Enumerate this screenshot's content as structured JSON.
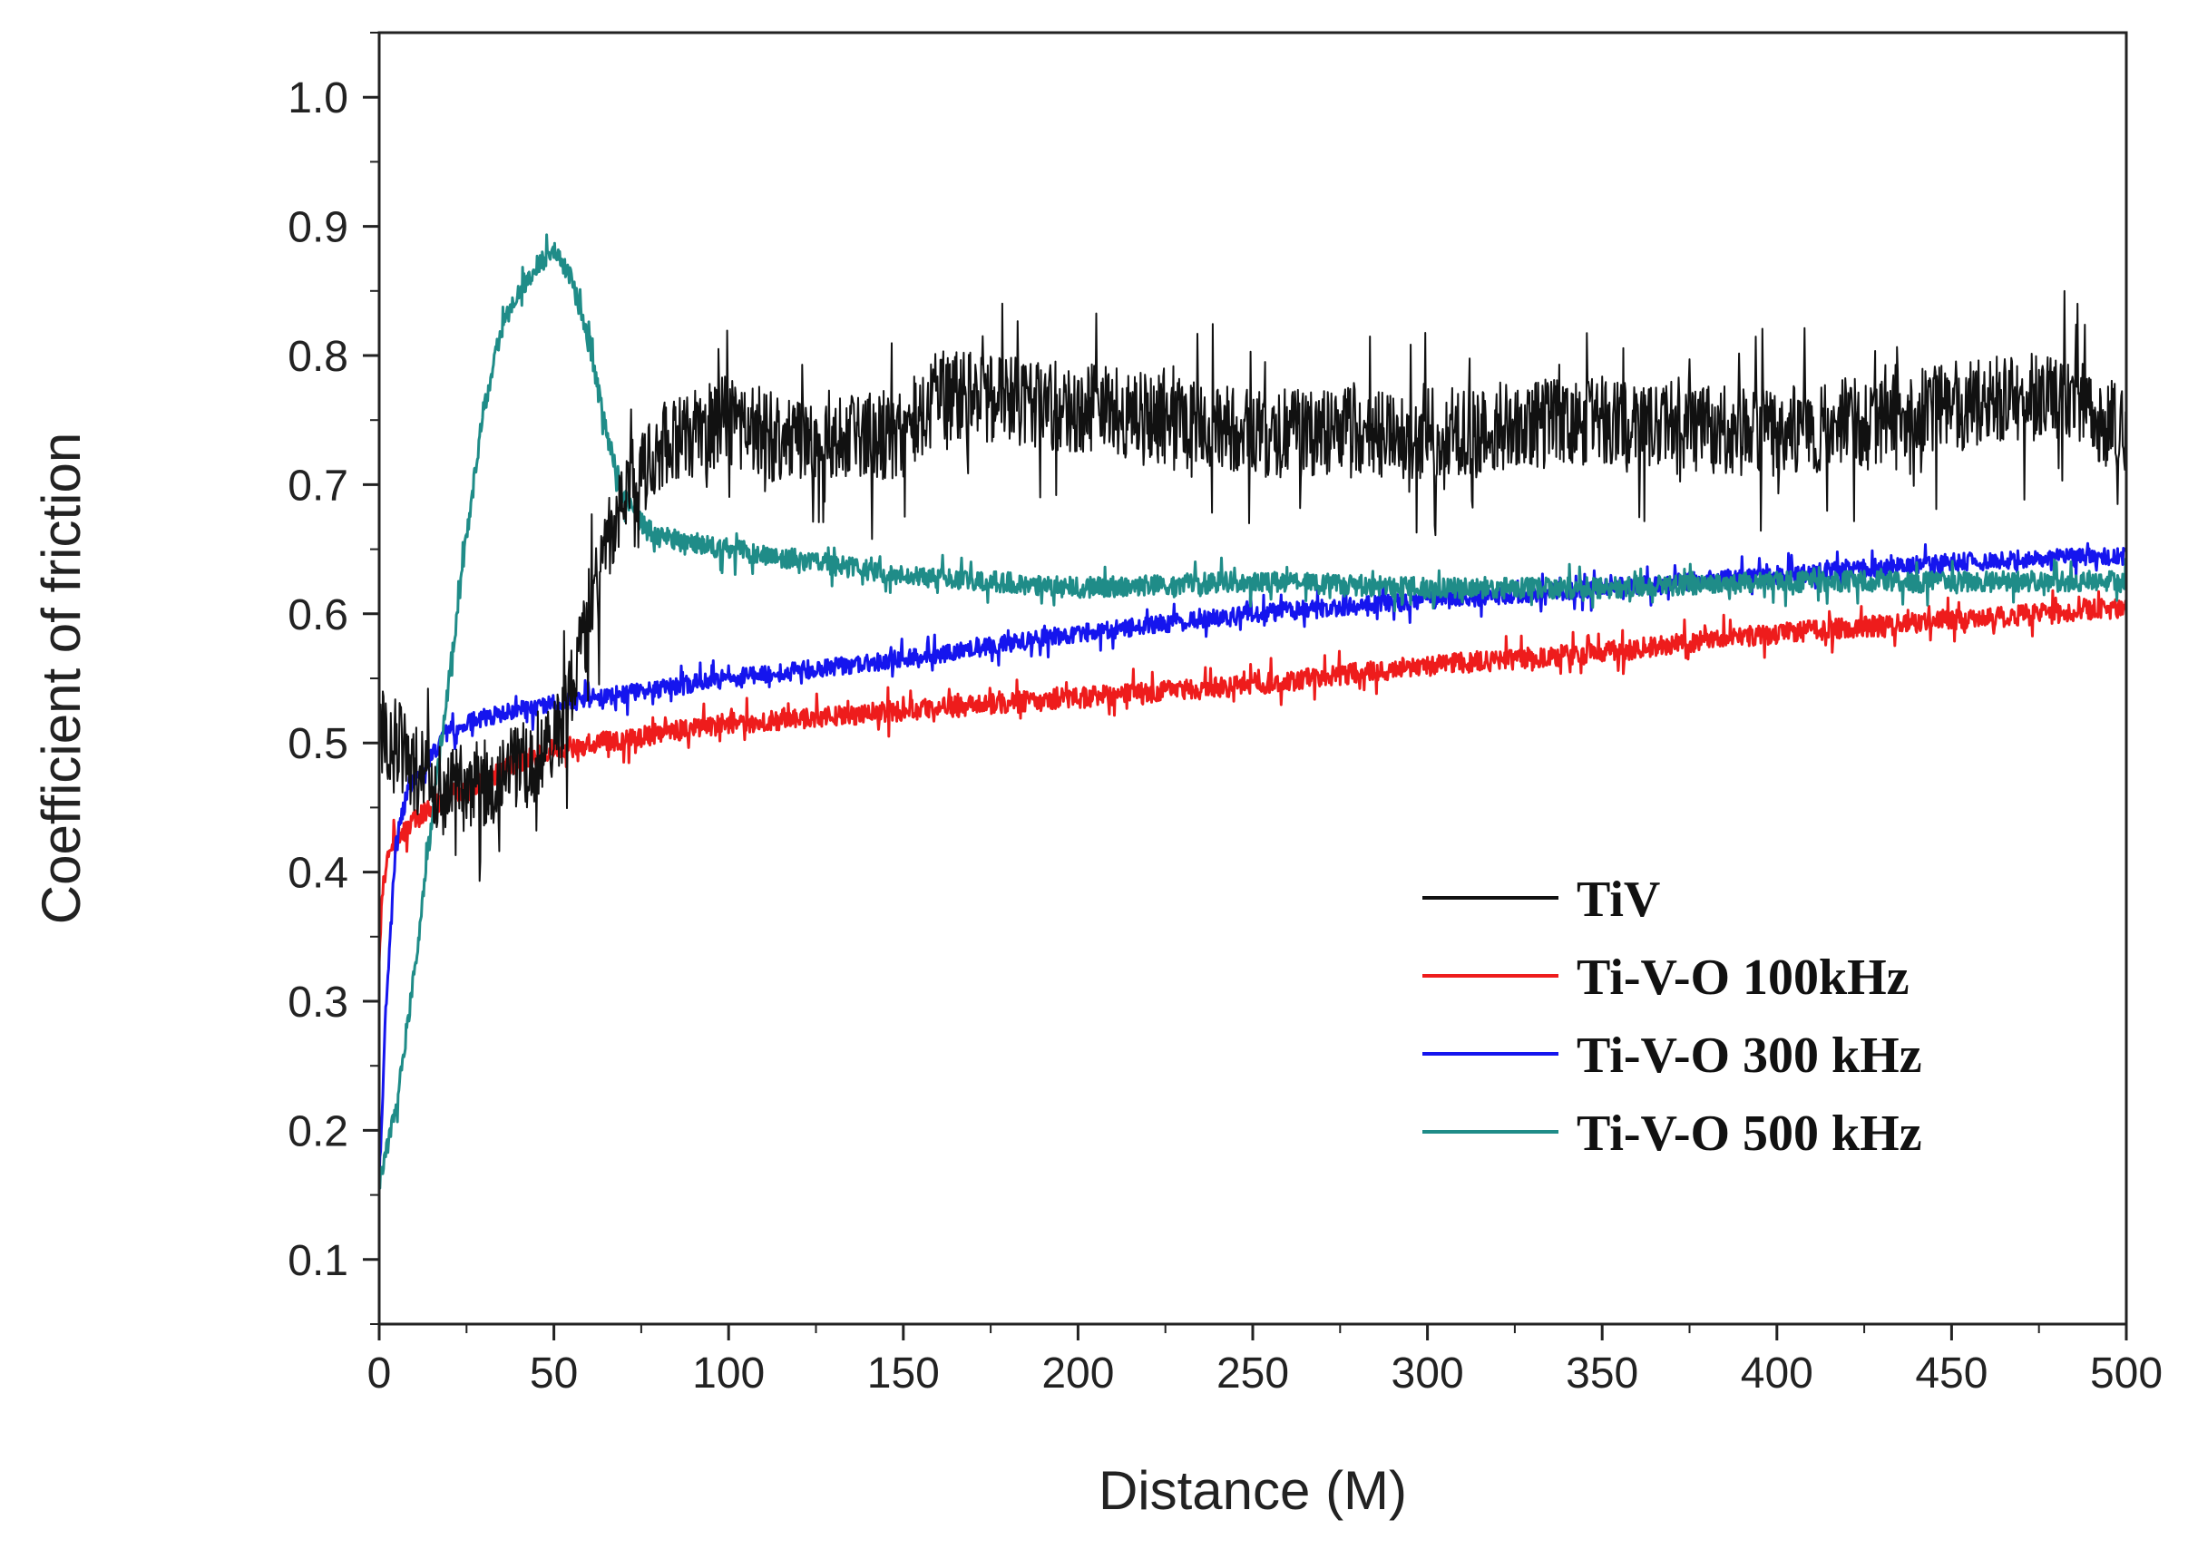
{
  "chart_data": {
    "type": "line",
    "title": "",
    "xlabel": "Distance (M)",
    "ylabel": "Coefficient of friction",
    "xlim": [
      0,
      500
    ],
    "ylim": [
      0.05,
      1.05
    ],
    "xticks": [
      0,
      50,
      100,
      150,
      200,
      250,
      300,
      350,
      400,
      450,
      500
    ],
    "xtick_labels": [
      "0",
      "50",
      "100",
      "150",
      "200",
      "250",
      "300",
      "350",
      "400",
      "450",
      "500"
    ],
    "yticks": [
      0.1,
      0.2,
      0.3,
      0.4,
      0.5,
      0.6,
      0.7,
      0.8,
      0.9,
      1.0
    ],
    "ytick_labels": [
      "0.1",
      "0.2",
      "0.3",
      "0.4",
      "0.5",
      "0.6",
      "0.7",
      "0.8",
      "0.9",
      "1.0"
    ],
    "grid": false,
    "legend_position": "bottom-right",
    "series": [
      {
        "name": "TiV",
        "color": "#111111",
        "noise": 0.035,
        "x": [
          0,
          5,
          10,
          20,
          30,
          40,
          50,
          55,
          60,
          65,
          70,
          75,
          80,
          90,
          100,
          120,
          150,
          160,
          200,
          250,
          300,
          350,
          400,
          450,
          480,
          500
        ],
        "y": [
          0.51,
          0.5,
          0.48,
          0.46,
          0.47,
          0.48,
          0.5,
          0.54,
          0.6,
          0.65,
          0.69,
          0.71,
          0.73,
          0.74,
          0.75,
          0.73,
          0.74,
          0.77,
          0.76,
          0.74,
          0.74,
          0.75,
          0.74,
          0.76,
          0.77,
          0.74
        ]
      },
      {
        "name": "Ti-V-O 100kHz",
        "color": "#ee1c1c",
        "noise": 0.008,
        "x": [
          0,
          1,
          3,
          10,
          20,
          30,
          40,
          50,
          75,
          100,
          150,
          200,
          250,
          300,
          350,
          400,
          450,
          500
        ],
        "y": [
          0.33,
          0.39,
          0.42,
          0.44,
          0.46,
          0.47,
          0.485,
          0.495,
          0.505,
          0.515,
          0.525,
          0.535,
          0.545,
          0.56,
          0.57,
          0.585,
          0.595,
          0.605
        ]
      },
      {
        "name": "Ti-V-O 300 kHz",
        "color": "#1515ee",
        "noise": 0.007,
        "x": [
          0,
          2,
          5,
          8,
          10,
          15,
          20,
          30,
          50,
          75,
          100,
          150,
          200,
          250,
          300,
          350,
          400,
          450,
          500
        ],
        "y": [
          0.16,
          0.3,
          0.43,
          0.46,
          0.47,
          0.49,
          0.51,
          0.52,
          0.53,
          0.54,
          0.55,
          0.565,
          0.585,
          0.6,
          0.61,
          0.62,
          0.63,
          0.64,
          0.645
        ]
      },
      {
        "name": "Ti-V-O 500 kHz",
        "color": "#1f8c88",
        "noise": 0.008,
        "x": [
          0,
          5,
          10,
          15,
          20,
          25,
          30,
          35,
          40,
          45,
          50,
          55,
          60,
          65,
          70,
          75,
          80,
          90,
          100,
          125,
          150,
          200,
          250,
          300,
          350,
          400,
          450,
          500
        ],
        "y": [
          0.16,
          0.22,
          0.32,
          0.44,
          0.55,
          0.66,
          0.76,
          0.82,
          0.85,
          0.87,
          0.88,
          0.86,
          0.81,
          0.74,
          0.69,
          0.67,
          0.66,
          0.655,
          0.65,
          0.64,
          0.63,
          0.62,
          0.625,
          0.62,
          0.62,
          0.625,
          0.625,
          0.625
        ]
      }
    ]
  }
}
